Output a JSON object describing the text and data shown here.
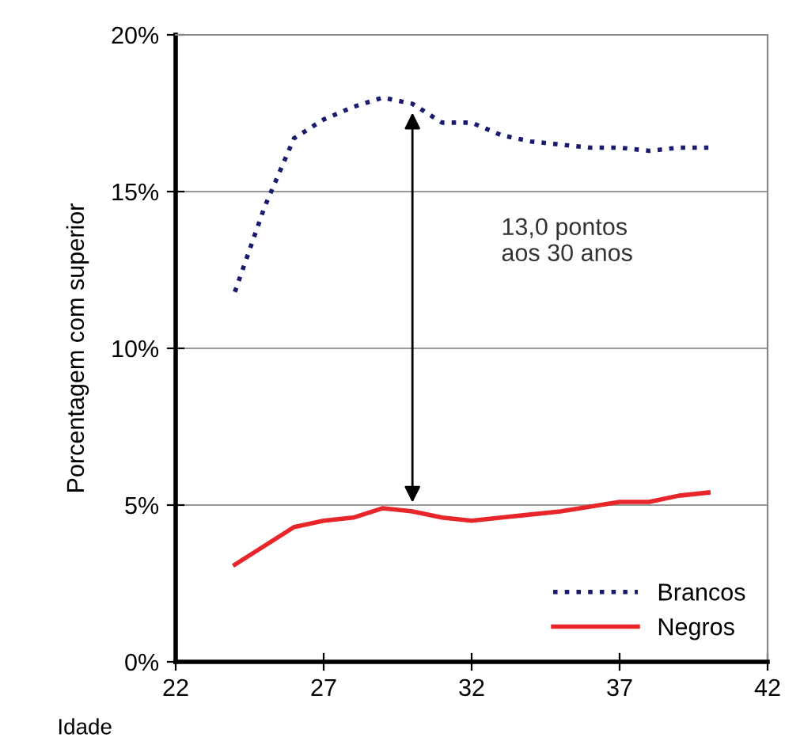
{
  "chart_data": {
    "type": "line",
    "xlabel": "Idade",
    "ylabel": "Porcentagem com superior",
    "x": [
      24,
      25,
      26,
      27,
      28,
      29,
      30,
      31,
      32,
      33,
      34,
      35,
      36,
      37,
      38,
      39,
      40
    ],
    "series": [
      {
        "name": "Brancos",
        "color": "#1a1a6e",
        "line_style": "dotted",
        "values": [
          11.8,
          14.5,
          16.7,
          17.3,
          17.7,
          18.0,
          17.8,
          17.2,
          17.2,
          16.8,
          16.6,
          16.5,
          16.4,
          16.4,
          16.3,
          16.4,
          16.4
        ]
      },
      {
        "name": "Negros",
        "color": "#e8262a",
        "line_style": "solid",
        "values": [
          3.1,
          3.7,
          4.3,
          4.5,
          4.6,
          4.9,
          4.8,
          4.6,
          4.5,
          4.6,
          4.7,
          4.8,
          4.95,
          5.1,
          5.1,
          5.3,
          5.4
        ]
      }
    ],
    "xlim": [
      22,
      42
    ],
    "xticks": [
      22,
      27,
      32,
      37,
      42
    ],
    "ylim": [
      0,
      20
    ],
    "yticks": [
      {
        "value": 0,
        "label": "0%"
      },
      {
        "value": 5,
        "label": "5%"
      },
      {
        "value": 10,
        "label": "10%"
      },
      {
        "value": 15,
        "label": "15%"
      },
      {
        "value": 20,
        "label": "20%"
      }
    ],
    "grid": "y",
    "legend": "bottom right",
    "marker": "none",
    "annotations": [
      "13,0 pontos\naos 30 anos"
    ]
  }
}
